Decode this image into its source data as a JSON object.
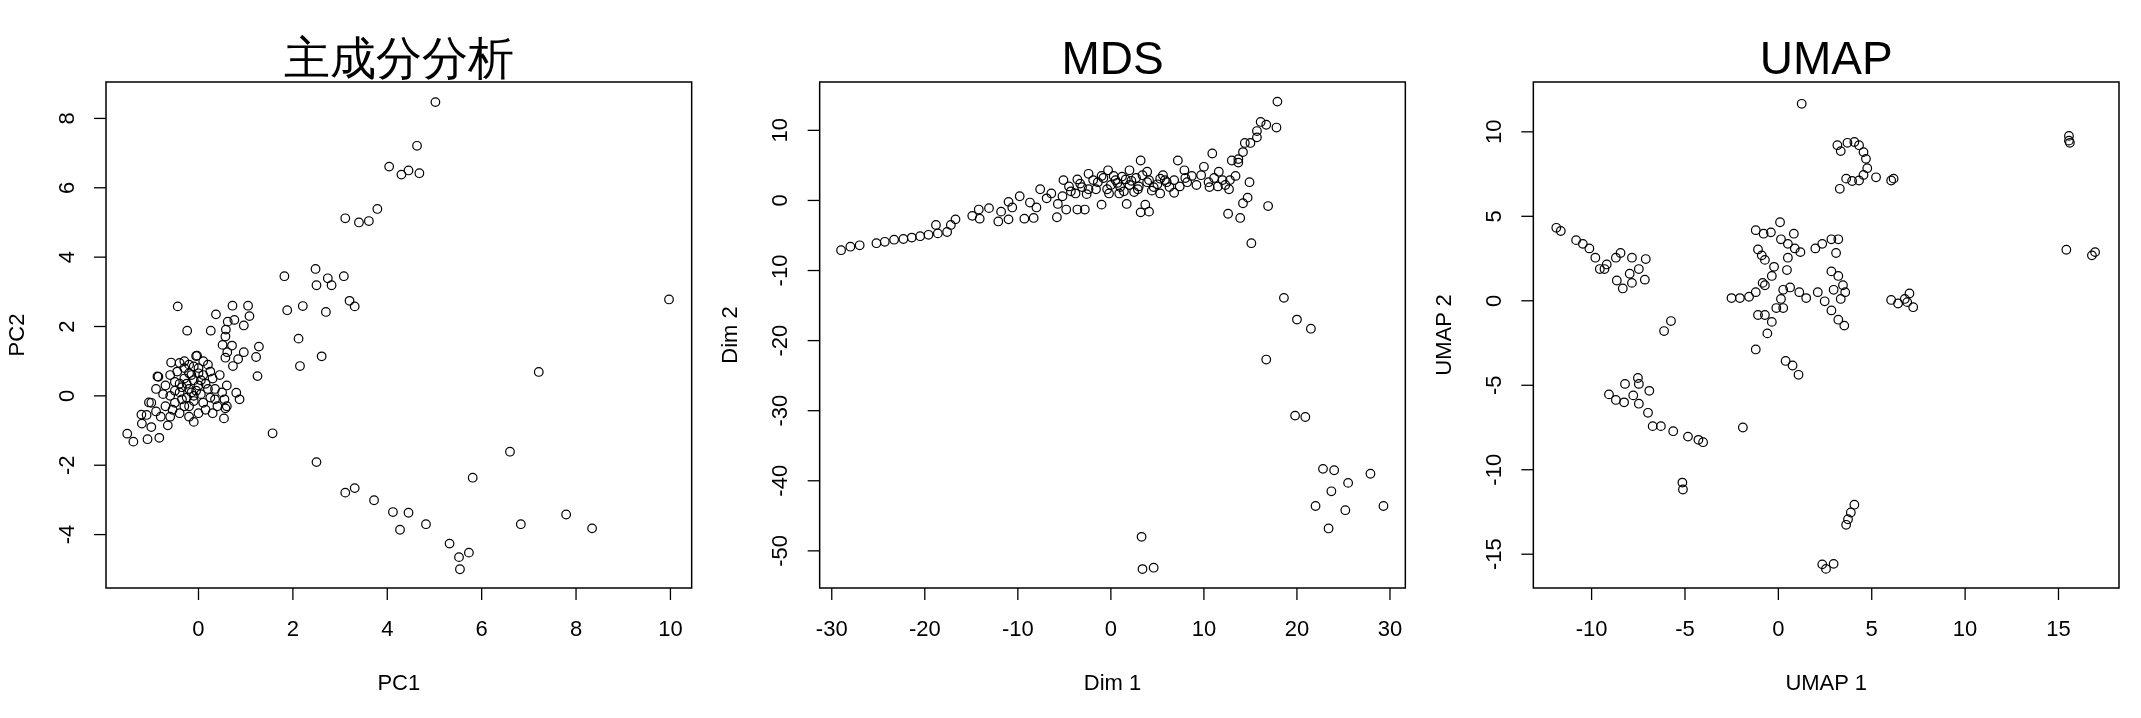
{
  "chart_data": [
    {
      "type": "scatter",
      "title": "主成分分析",
      "xlabel": "PC1",
      "ylabel": "PC2",
      "xlim": [
        -1.96,
        10.45
      ],
      "ylim": [
        -5.54,
        9.05
      ],
      "xticks": [
        0,
        2,
        4,
        6,
        8,
        10
      ],
      "yticks": [
        -4,
        -2,
        0,
        2,
        4,
        6,
        8
      ],
      "marker": "circle",
      "series": [
        {
          "color": "#000000",
          "x": [
            5.02,
            4.63,
            4.04,
            4.3,
            4.45,
            4.68,
            3.79,
            3.11,
            3.4,
            3.61,
            1.82,
            2.48,
            2.5,
            2.74,
            2.82,
            3.08,
            3.2,
            3.31,
            1.88,
            2.21,
            2.7,
            2.12,
            2.61,
            2.15,
            9.97,
            7.21,
            1.57,
            2.5,
            3.11,
            3.31,
            3.72,
            4.12,
            4.45,
            4.27,
            4.82,
            5.32,
            5.52,
            5.73,
            5.54,
            5.81,
            6.6,
            6.83,
            7.79,
            8.34,
            -0.44,
            -0.24,
            0.37,
            0.26,
            0.72,
            1.05,
            1.08,
            0.62,
            0.76,
            0.58,
            0.57,
            0.96,
            0.51,
            0.71,
            0.61,
            0.57,
            0.84,
            0.96,
            0.73,
            1.28,
            1.22,
            1.25,
            0.8,
            0.87,
            0.54,
            0.57,
            -0.58,
            -0.83,
            -1.08,
            -1.38,
            -1.51,
            -1.21,
            -1.05,
            -0.87,
            -0.03,
            -0.2,
            -0.1,
            0,
            -0.3,
            0.1,
            -0.4,
            -0.5,
            -0.2,
            0.1,
            0.2,
            0.3,
            0,
            -0.2,
            0.1,
            -0.05,
            0.2,
            0.35,
            0.45,
            0.5,
            0.4,
            0.3,
            0,
            -0.2,
            -0.1,
            -0.4,
            -0.6,
            -0.7,
            -0.8,
            -0.9,
            -0.6,
            -0.7,
            -0.9,
            -0.85,
            -0.6,
            -0.45,
            -0.3,
            -1.0,
            -1.1,
            -1.2,
            -1.0,
            -0.5,
            -0.35,
            0.05,
            -0.15,
            0.25,
            -0.65,
            0.55,
            0.6,
            0.6,
            -0.3,
            -0.25,
            -0.15,
            -0.05,
            -0.35,
            -0.25,
            -0.1,
            0.05,
            0.15,
            -0.1,
            -0.2,
            0,
            -0.4,
            -0.5,
            -0.3,
            -0.55,
            -0.75,
            0.15,
            0.35,
            0.25,
            -0.1,
            -0.4
          ],
          "values": [
            8.47,
            7.21,
            6.61,
            6.38,
            6.5,
            6.42,
            5.39,
            5.12,
            5.0,
            5.04,
            3.45,
            3.66,
            3.19,
            3.39,
            3.19,
            3.45,
            2.74,
            2.58,
            2.47,
            2.59,
            2.42,
            1.65,
            1.14,
            0.86,
            2.78,
            0.69,
            -1.08,
            -1.91,
            -2.79,
            -2.66,
            -3.01,
            -3.35,
            -3.37,
            -3.86,
            -3.7,
            -4.26,
            -4.65,
            -4.52,
            -5.0,
            -2.36,
            -1.61,
            -3.7,
            -3.42,
            -3.82,
            2.58,
            1.88,
            2.35,
            1.88,
            2.6,
            2.6,
            2.3,
            2.14,
            2.19,
            1.91,
            1.71,
            2.03,
            1.47,
            1.45,
            1.26,
            1.1,
            1.06,
            1.26,
            0.86,
            1.42,
            1.12,
            0.57,
            0.09,
            -0.1,
            -0.65,
            -0.36,
            0.96,
            -1.21,
            -1.25,
            -1.32,
            -1.09,
            -0.54,
            -0.19,
            0.56,
            1.16,
            0.2,
            0,
            0.3,
            0.5,
            0.6,
            0.1,
            -0.2,
            -0.3,
            -0.2,
            0.2,
            0.5,
            0.8,
            0.9,
            1.0,
            1.15,
            0.9,
            0.2,
            0.6,
            0.1,
            -0.3,
            -0.5,
            -0.5,
            -0.6,
            -0.75,
            -0.5,
            -0.6,
            -0.3,
            -0.6,
            -0.45,
            0,
            0.3,
            0.2,
            0.55,
            0.6,
            0.7,
            0.8,
            -0.2,
            -0.55,
            -0.8,
            -0.9,
            0.4,
            -0.1,
            0.45,
            0.6,
            -0.05,
            -0.85,
            -0.1,
            0.3,
            -0.3,
            1.0,
            0.35,
            0.1,
            0.15,
            0.25,
            -0.05,
            -0.15,
            0.05,
            0.35,
            0.45,
            0.65,
            0.65,
            0.35,
            0.15,
            -0.3,
            -0.4,
            0.05,
            -0.4,
            -0.1,
            0.7,
            0.85,
            0.95
          ]
        }
      ]
    },
    {
      "type": "scatter",
      "title": "MDS",
      "xlabel": "Dim 1",
      "ylabel": "Dim 2",
      "xlim": [
        -31.3,
        31.65
      ],
      "ylim": [
        -55.3,
        16.9
      ],
      "xticks": [
        -30,
        -20,
        -10,
        0,
        10,
        20,
        30
      ],
      "yticks": [
        -50,
        -40,
        -30,
        -20,
        -10,
        0,
        10
      ],
      "marker": "circle",
      "series": [
        {
          "color": "#000000",
          "x": [
            17.9,
            16.1,
            16.7,
            17.8,
            15.7,
            15.7,
            14.4,
            15.0,
            10.9,
            14.2,
            13.7,
            13.0,
            13.7,
            16.9,
            14.7,
            14.2,
            12.6,
            13.9,
            15.1,
            18.6,
            20.0,
            21.5,
            16.7,
            19.8,
            20.9,
            22.8,
            24.0,
            27.9,
            25.5,
            23.7,
            22.0,
            29.3,
            25.2,
            23.4,
            3.3,
            3.4,
            4.6,
            -29.0,
            -28.0,
            -27.0,
            -25.2,
            -24.3,
            -23.3,
            -22.3,
            -21.4,
            -20.5,
            -19.6,
            -18.8,
            -18.6,
            -17.6,
            -17.2,
            -16.7,
            -14.9,
            -14.1,
            -14.2,
            -13.1,
            -12.1,
            -11.8,
            -11.0,
            -11.0,
            -10.6,
            -9.8,
            -9.3,
            -8.7,
            -8.3,
            -7.6,
            -8.0,
            -5.8,
            -4.8,
            -5.7,
            -6.4,
            -5.1,
            -3.6,
            -3.6,
            -2.8,
            -2.4,
            -1.6,
            -1.0,
            -0.3,
            0.0,
            0.9,
            1.7,
            2.0,
            3.2,
            3.2,
            4.1,
            3.7,
            3.9,
            5.3,
            5.3,
            6.8,
            7.2,
            7.9,
            8.2,
            9.2,
            10.0,
            10.6,
            12.0,
            12.7,
            14.9,
            11.6,
            13.4,
            -2.4,
            -1.4,
            -0.4,
            0.5,
            1.0,
            2.0,
            2.7,
            2.9,
            3.9,
            4.6,
            5.8,
            6.3,
            -3.8,
            -3.1,
            -4.3,
            -5.2,
            -6.9,
            -1.0,
            1.2,
            8.7,
            11.1,
            12.3,
            -4.5,
            -3.3,
            -2.6,
            -1.9,
            -0.8,
            -0.2,
            0.3,
            0.7,
            1.4,
            1.6,
            2.2,
            2.5,
            3.0,
            3.4,
            4.1,
            4.4,
            5.0,
            5.6,
            6.0,
            6.8,
            7.4,
            8.0,
            9.7,
            10.5,
            11.5,
            12.8
          ],
          "values": [
            14.1,
            11.2,
            10.8,
            10.4,
            9.9,
            9.0,
            8.2,
            8.2,
            6.7,
            6.9,
            5.9,
            5.7,
            5.4,
            -0.8,
            0.4,
            -0.4,
            -1.9,
            -2.5,
            -6.1,
            -13.9,
            -17.0,
            -18.3,
            -22.7,
            -30.7,
            -30.9,
            -38.3,
            -38.5,
            -39.0,
            -40.3,
            -41.5,
            -43.6,
            -43.6,
            -44.2,
            -46.8,
            -48.0,
            -52.6,
            -52.4,
            -7.1,
            -6.6,
            -6.4,
            -6.1,
            -5.9,
            -5.6,
            -5.5,
            -5.3,
            -5.1,
            -4.9,
            -3.5,
            -4.7,
            -4.5,
            -3.5,
            -2.7,
            -2.2,
            -2.6,
            -1.3,
            -1.1,
            -3.0,
            -1.6,
            -2.7,
            -0.2,
            -1.0,
            0.6,
            -2.6,
            -0.3,
            -2.5,
            1.6,
            -1.0,
            -2.4,
            -1.3,
            -0.5,
            1.0,
            2.9,
            3.0,
            -1.3,
            -1.3,
            3.8,
            1.6,
            -0.6,
            4.3,
            2.2,
            1.0,
            -0.5,
            4.3,
            5.7,
            -1.7,
            -1.6,
            -0.6,
            4.1,
            3.1,
            1.0,
            1.1,
            5.7,
            4.3,
            2.6,
            2.2,
            4.8,
            1.9,
            2.9,
            1.6,
            2.6,
            4.1,
            3.5,
            1.6,
            2.6,
            1.6,
            2.9,
            1.9,
            2.2,
            3.2,
            1.6,
            2.6,
            1.9,
            2.9,
            1.9,
            1.0,
            1.9,
            1.3,
            0.6,
            0.3,
            3.5,
            3.4,
            3.5,
            3.2,
            2.2,
            2.0,
            2.4,
            0.9,
            2.9,
            3.2,
            1.0,
            3.5,
            2.5,
            1.3,
            3.0,
            2.8,
            1.2,
            2.0,
            3.6,
            2.9,
            1.4,
            2.3,
            3.6,
            2.6,
            2.9,
            2.0,
            3.2,
            3.6,
            2.6,
            2.0,
            2.9
          ]
        }
      ]
    },
    {
      "type": "scatter",
      "title": "UMAP",
      "xlabel": "UMAP 1",
      "ylabel": "UMAP 2",
      "xlim": [
        -13.12,
        18.24
      ],
      "ylim": [
        -17.0,
        12.95
      ],
      "xticks": [
        -10,
        -5,
        0,
        5,
        10,
        15
      ],
      "yticks": [
        -15,
        -10,
        -5,
        0,
        5,
        10
      ],
      "marker": "circle",
      "series": [
        {
          "color": "#000000",
          "x": [
            1.25,
            15.56,
            15.56,
            15.61,
            15.42,
            16.96,
            16.79,
            3.16,
            3.34,
            3.7,
            4.07,
            4.32,
            4.56,
            4.69,
            4.76,
            4.56,
            4.32,
            3.95,
            3.63,
            3.29,
            5.23,
            6.04,
            6.17,
            -11.89,
            -11.65,
            -10.83,
            -10.47,
            -10.12,
            -9.8,
            -9.56,
            -9.19,
            -8.7,
            -8.45,
            -7.84,
            -7.1,
            -7.47,
            -7.96,
            -7.15,
            -8.33,
            -8.65,
            -7.84,
            -9.31,
            -5.75,
            -6.12,
            -9.07,
            -8.7,
            -8.26,
            -8.21,
            -7.52,
            -7.47,
            -7.77,
            -7.47,
            -6.91,
            -6.98,
            -6.73,
            -6.29,
            -5.63,
            -4.84,
            -4.28,
            -4.03,
            -5.14,
            -5.11,
            -1.9,
            -1.21,
            4.07,
            3.88,
            3.73,
            3.63,
            2.35,
            2.55,
            2.96,
            0.39,
            0.76,
            1.08,
            -2.51,
            -2.06,
            -1.57,
            -1.21,
            -1.09,
            -0.72,
            -0.59,
            -0.35,
            -0.11,
            0.14,
            -0.72,
            -0.84,
            -0.35,
            -0.23,
            -0.72,
            -0.89,
            -1.09,
            -1.21,
            -0.79,
            -0.4,
            0.09,
            0.14,
            0.51,
            0.83,
            0.88,
            1.18,
            0.51,
            0.46,
            0.63,
            1.12,
            1.49,
            0.26,
            0.26,
            1.98,
            2.35,
            2.84,
            3.21,
            3.09,
            2.84,
            3.21,
            3.46,
            3.58,
            3.34,
            2.96,
            2.11,
            2.48,
            2.84,
            3.21,
            3.53,
            6.04,
            6.41,
            6.77,
            7.02,
            7.22,
            6.9
          ],
          "values": [
            11.66,
            9.76,
            9.48,
            9.35,
            3.02,
            2.88,
            2.69,
            9.21,
            8.86,
            9.35,
            9.4,
            9.21,
            8.8,
            8.4,
            7.85,
            7.45,
            7.12,
            7.09,
            7.23,
            6.63,
            7.31,
            7.12,
            7.23,
            4.32,
            4.13,
            3.59,
            3.37,
            3.1,
            2.55,
            1.88,
            2.15,
            2.55,
            2.83,
            2.55,
            2.47,
            1.88,
            1.6,
            1.25,
            0.73,
            1.2,
            1.06,
            1.88,
            -1.2,
            -1.79,
            -5.54,
            -5.87,
            -6.01,
            -4.92,
            -4.57,
            -4.92,
            -5.6,
            -6.09,
            -5.33,
            -6.63,
            -7.42,
            -7.42,
            -7.72,
            -8.04,
            -8.23,
            -8.37,
            -10.76,
            -11.17,
            -7.5,
            -2.88,
            -12.07,
            -12.53,
            -12.93,
            -13.26,
            -15.6,
            -15.87,
            -15.57,
            -3.56,
            -3.83,
            -4.38,
            0.16,
            0.16,
            0.24,
            0.51,
            -0.84,
            -0.84,
            -1.93,
            -1.25,
            -0.43,
            0.11,
            0.92,
            1.06,
            1.47,
            2.01,
            2.42,
            2.69,
            3.04,
            4.18,
            3.97,
            4.05,
            4.65,
            3.64,
            3.37,
            3.97,
            3.1,
            2.88,
            2.55,
            1.82,
            0.79,
            0.51,
            0.16,
            -0.43,
            0.65,
            3.1,
            3.37,
            3.64,
            3.64,
            2.83,
            1.74,
            1.47,
            0.92,
            0.51,
            0.11,
            0.65,
            0.51,
            -0.03,
            -0.57,
            -1.12,
            -1.47,
            0.05,
            -0.16,
            0.11,
            0.43,
            -0.38,
            -0.08
          ]
        }
      ]
    }
  ]
}
